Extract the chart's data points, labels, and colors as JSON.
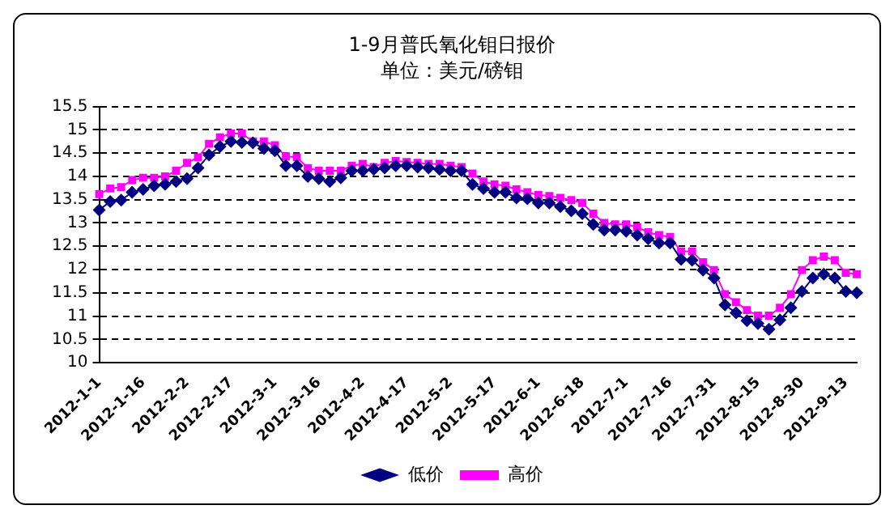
{
  "chart_data": {
    "type": "line",
    "title": "1-9月普氏氧化钼日报价",
    "subtitle": "单位：美元/磅钼",
    "categories": [
      "2012-1-1",
      null,
      null,
      null,
      "2012-1-16",
      null,
      null,
      null,
      "2012-2-2",
      null,
      null,
      null,
      "2012-2-17",
      null,
      null,
      null,
      "2012-3-1",
      null,
      null,
      null,
      "2012-3-16",
      null,
      null,
      null,
      "2012-4-2",
      null,
      null,
      null,
      "2012-4-17",
      null,
      null,
      null,
      "2012-5-2",
      null,
      null,
      null,
      "2012-5-17",
      null,
      null,
      null,
      "2012-6-1",
      null,
      null,
      null,
      "2012-6-18",
      null,
      null,
      null,
      "2012-7-1",
      null,
      null,
      null,
      "2012-7-16",
      null,
      null,
      null,
      "2012-7-31",
      null,
      null,
      null,
      "2012-8-15",
      null,
      null,
      null,
      "2012-8-30",
      null,
      null,
      null,
      "2012-9-13",
      null
    ],
    "series": [
      {
        "name": "低价",
        "color": "#000080",
        "marker": "diamond",
        "values": [
          13.28,
          13.46,
          13.49,
          13.66,
          13.72,
          13.8,
          13.83,
          13.89,
          13.95,
          14.18,
          14.46,
          14.64,
          14.75,
          14.73,
          14.72,
          14.6,
          14.55,
          14.23,
          14.23,
          14.0,
          13.95,
          13.89,
          13.97,
          14.12,
          14.12,
          14.15,
          14.18,
          14.23,
          14.23,
          14.2,
          14.18,
          14.15,
          14.12,
          14.12,
          13.83,
          13.74,
          13.66,
          13.66,
          13.54,
          13.52,
          13.43,
          13.43,
          13.35,
          13.26,
          13.2,
          12.97,
          12.85,
          12.85,
          12.82,
          12.74,
          12.66,
          12.57,
          12.57,
          12.22,
          12.2,
          11.99,
          11.82,
          11.24,
          11.07,
          10.9,
          10.84,
          10.72,
          10.92,
          11.18,
          11.53,
          11.82,
          11.9,
          11.82,
          11.53,
          11.5
        ]
      },
      {
        "name": "高价",
        "color": "#ff00ff",
        "marker": "square",
        "values": [
          13.62,
          13.74,
          13.77,
          13.92,
          13.97,
          13.97,
          14.0,
          14.12,
          14.29,
          14.41,
          14.7,
          14.84,
          14.92,
          14.92,
          14.75,
          14.75,
          14.67,
          14.43,
          14.41,
          14.18,
          14.12,
          14.12,
          14.12,
          14.23,
          14.27,
          14.2,
          14.29,
          14.33,
          14.31,
          14.29,
          14.27,
          14.27,
          14.23,
          14.2,
          14.06,
          13.89,
          13.83,
          13.8,
          13.72,
          13.66,
          13.6,
          13.58,
          13.54,
          13.49,
          13.43,
          13.2,
          13.0,
          12.97,
          12.97,
          12.91,
          12.8,
          12.74,
          12.7,
          12.39,
          12.39,
          12.16,
          11.99,
          11.47,
          11.3,
          11.13,
          11.01,
          11.01,
          11.18,
          11.47,
          11.99,
          12.2,
          12.28,
          12.2,
          11.93,
          11.9
        ]
      }
    ],
    "ylim": [
      10,
      15.5
    ],
    "yticks": [
      10,
      10.5,
      11,
      11.5,
      12,
      12.5,
      13,
      13.5,
      14,
      14.5,
      15,
      15.5
    ],
    "grid": "y",
    "legend": "bottom",
    "line_style": "solid"
  }
}
